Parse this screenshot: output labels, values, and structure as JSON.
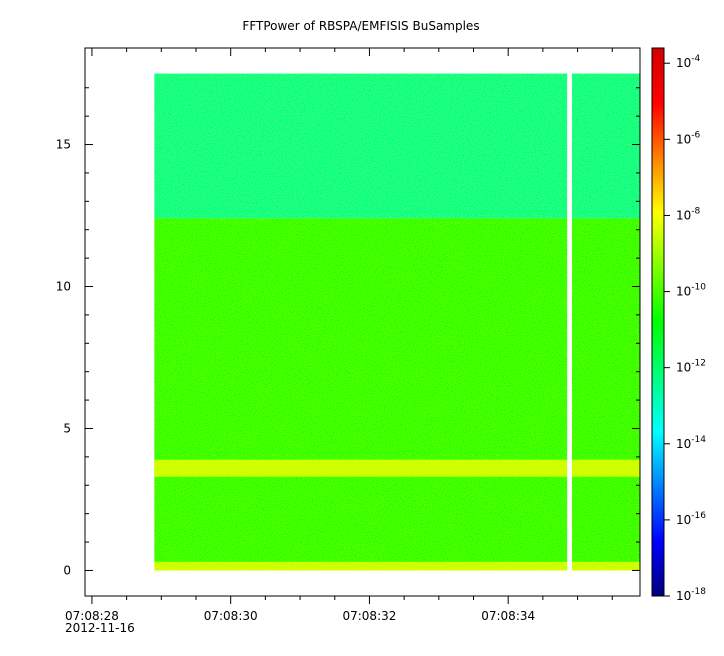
{
  "chart_data": {
    "type": "heatmap",
    "title": "FFTPower of RBSPA/EMFISIS  BuSamples",
    "xlabel": "",
    "ylabel": "",
    "x_ticks": [
      "07:08:28",
      "07:08:30",
      "07:08:32",
      "07:08:34"
    ],
    "x_tick_seconds": [
      28,
      30,
      32,
      34
    ],
    "x_date_label": "2012-11-16",
    "x_range_seconds": [
      27.9,
      35.9
    ],
    "y_ticks": [
      0,
      5,
      10,
      15
    ],
    "y_range": [
      -0.9,
      18.4
    ],
    "data_extent": {
      "x_start_seconds": 28.9,
      "x_end_seconds": 35.9,
      "y_min": 0,
      "y_max": 17.5
    },
    "data_gap_seconds": [
      34.85,
      34.92
    ],
    "bands": [
      {
        "y_from": 12.4,
        "y_to": 17.5,
        "level": -12.4,
        "description": "upper band"
      },
      {
        "y_from": 0.3,
        "y_to": 12.4,
        "level": -10.3,
        "description": "main band"
      },
      {
        "y_from": 3.3,
        "y_to": 3.9,
        "level": -8.5,
        "description": "enhanced line"
      },
      {
        "y_from": 0.0,
        "y_to": 0.3,
        "level": -8.5,
        "description": "lowest bin"
      }
    ],
    "colorbar": {
      "scale": "log",
      "range_exp": [
        -18,
        -3.6
      ],
      "tick_exponents": [
        -4,
        -6,
        -8,
        -10,
        -12,
        -14,
        -16,
        -18
      ],
      "colors": [
        "#00007f",
        "#0000ff",
        "#0080ff",
        "#00ffff",
        "#00ff80",
        "#00ff00",
        "#80ff00",
        "#ffff00",
        "#ff8000",
        "#ff0000",
        "#d40000"
      ]
    },
    "grid": false
  }
}
